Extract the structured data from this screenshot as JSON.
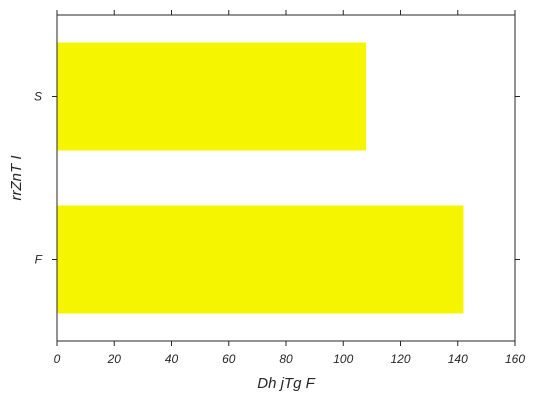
{
  "chart_data": {
    "type": "bar",
    "orientation": "horizontal",
    "categories": [
      "S",
      "F"
    ],
    "values": [
      108,
      142
    ],
    "xlabel": "Dh jTg F",
    "ylabel": "rrZnT I",
    "xlim": [
      0,
      160
    ],
    "xticks": [
      "0",
      "20",
      "40",
      "60",
      "80",
      "100",
      "120",
      "140",
      "160"
    ],
    "grid": false,
    "bar_color": "#f5f500",
    "axis_color": "#262626"
  }
}
